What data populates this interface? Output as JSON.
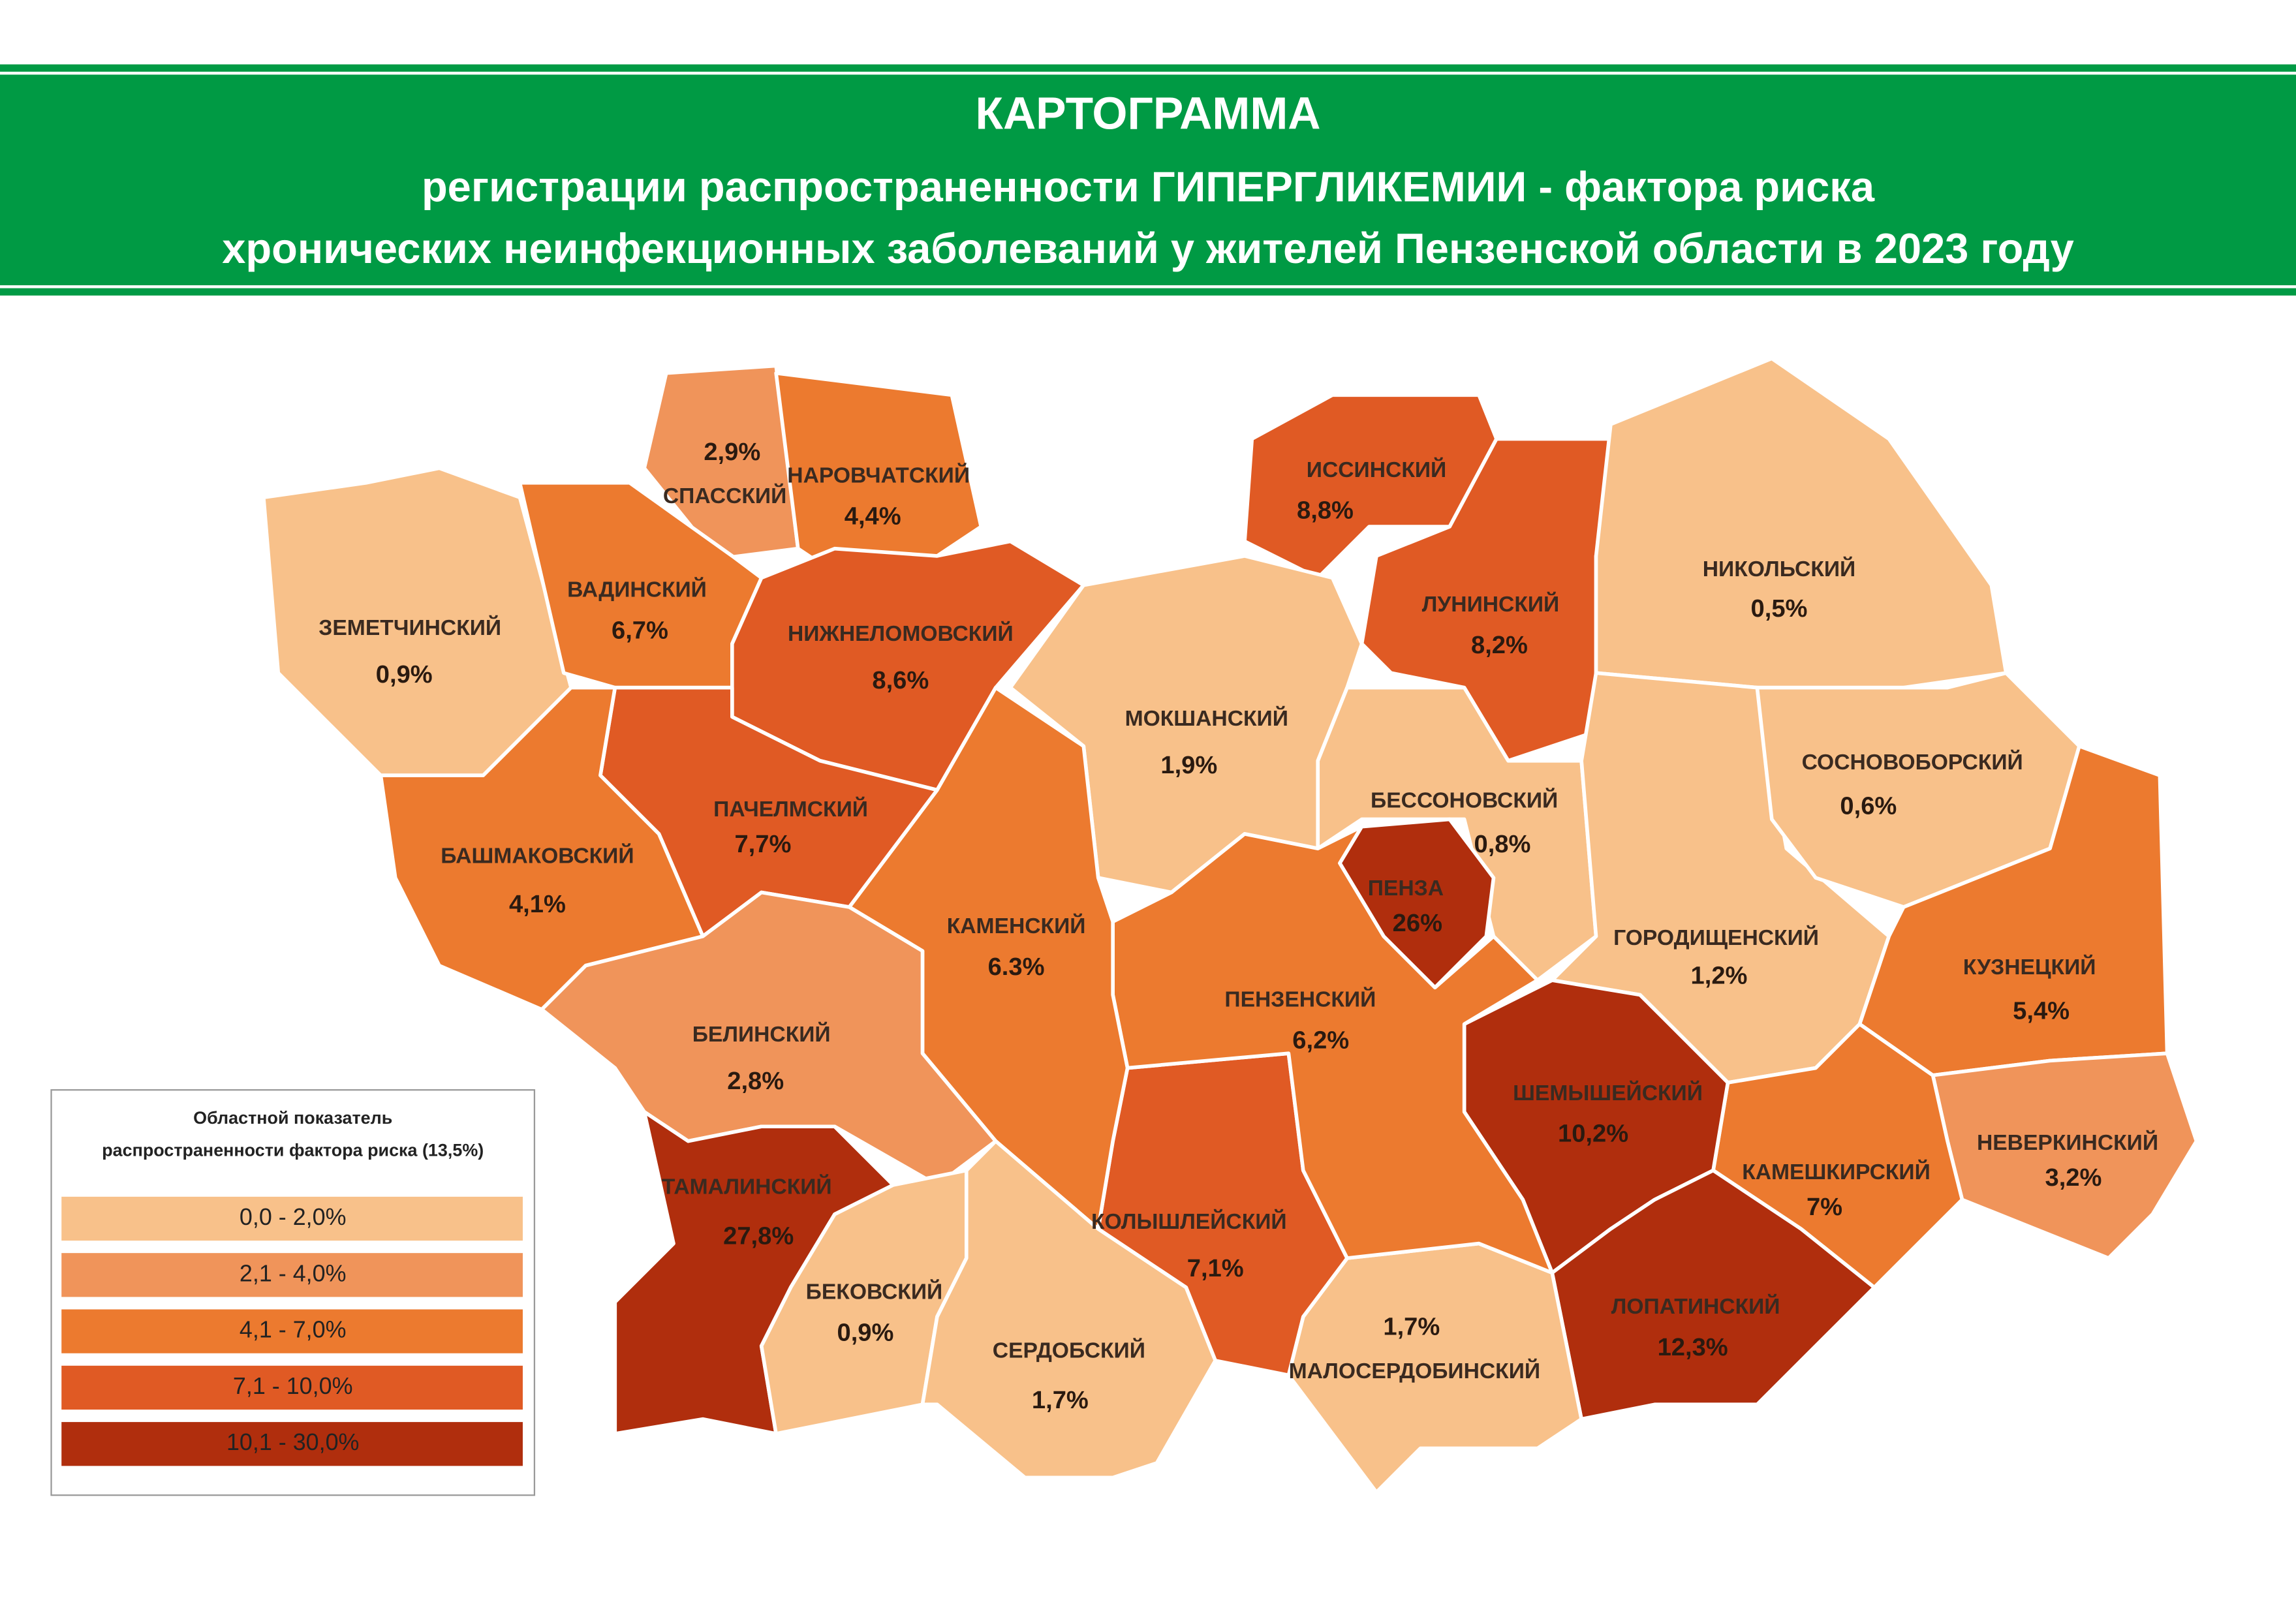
{
  "header": {
    "title": "КАРТОГРАММА",
    "subtitle_lines": [
      "регистрации распространенности ГИПЕРГЛИКЕМИИ - фактора риска",
      "хронических неинфекционных заболеваний у жителей Пензенской области в 2023 году"
    ]
  },
  "legend": {
    "title_lines": [
      "Областной показатель",
      "распространенности фактора риска (13,5%)"
    ],
    "items": [
      {
        "label": "0,0 - 2,0%",
        "color": "#f8c18a"
      },
      {
        "label": "2,1 - 4,0%",
        "color": "#f0945a"
      },
      {
        "label": "4,1 - 7,0%",
        "color": "#ec7a2f"
      },
      {
        "label": "7,1 - 10,0%",
        "color": "#e05a24"
      },
      {
        "label": "10,1 - 30,0%",
        "color": "#b02e0d"
      }
    ]
  },
  "regions": [
    {
      "name": "СПАССКИЙ",
      "value": "2,9%",
      "color": "#f0945a"
    },
    {
      "name": "НАРОВЧАТСКИЙ",
      "value": "4,4%",
      "color": "#ec7a2f"
    },
    {
      "name": "ИССИНСКИЙ",
      "value": "8,8%",
      "color": "#e05a24"
    },
    {
      "name": "ЛУНИНСКИЙ",
      "value": "8,2%",
      "color": "#e05a24"
    },
    {
      "name": "НИКОЛЬСКИЙ",
      "value": "0,5%",
      "color": "#f8c18a"
    },
    {
      "name": "ЗЕМЕТЧИНСКИЙ",
      "value": "0,9%",
      "color": "#f8c18a"
    },
    {
      "name": "ВАДИНСКИЙ",
      "value": "6,7%",
      "color": "#ec7a2f"
    },
    {
      "name": "НИЖНЕЛОМОВСКИЙ",
      "value": "8,6%",
      "color": "#e05a24"
    },
    {
      "name": "МОКШАНСКИЙ",
      "value": "1,9%",
      "color": "#f8c18a"
    },
    {
      "name": "БЕССОНОВСКИЙ",
      "value": "0,8%",
      "color": "#f8c18a"
    },
    {
      "name": "ГОРОДИЩЕНСКИЙ",
      "value": "1,2%",
      "color": "#f8c18a"
    },
    {
      "name": "СОСНОВОБОРСКИЙ",
      "value": "0,6%",
      "color": "#f8c18a"
    },
    {
      "name": "КУЗНЕЦКИЙ",
      "value": "5,4%",
      "color": "#ec7a2f"
    },
    {
      "name": "НЕВЕРКИНСКИЙ",
      "value": "3,2%",
      "color": "#f0945a"
    },
    {
      "name": "КАМЕШКИРСКИЙ",
      "value": "7%",
      "color": "#ec7a2f"
    },
    {
      "name": "ШЕМЫШЕЙСКИЙ",
      "value": "10,2%",
      "color": "#b02e0d"
    },
    {
      "name": "ЛОПАТИНСКИЙ",
      "value": "12,3%",
      "color": "#b02e0d"
    },
    {
      "name": "МАЛОСЕРДОБИНСКИЙ",
      "value": "1,7%",
      "color": "#f8c18a"
    },
    {
      "name": "КОЛЫШЛЕЙСКИЙ",
      "value": "7,1%",
      "color": "#e05a24"
    },
    {
      "name": "ПЕНЗЕНСКИЙ",
      "value": "6,2%",
      "color": "#ec7a2f"
    },
    {
      "name": "КАМЕНСКИЙ",
      "value": "6.3%",
      "color": "#ec7a2f"
    },
    {
      "name": "ПАЧЕЛМСКИЙ",
      "value": "7,7%",
      "color": "#e05a24"
    },
    {
      "name": "БАШМАКОВСКИЙ",
      "value": "4,1%",
      "color": "#ec7a2f"
    },
    {
      "name": "БЕЛИНСКИЙ",
      "value": "2,8%",
      "color": "#f0945a"
    },
    {
      "name": "ТАМАЛИНСКИЙ",
      "value": "27,8%",
      "color": "#b02e0d"
    },
    {
      "name": "БЕКОВСКИЙ",
      "value": "0,9%",
      "color": "#f8c18a"
    },
    {
      "name": "СЕРДОБСКИЙ",
      "value": "1,7%",
      "color": "#f8c18a"
    },
    {
      "name": "ПЕНЗА",
      "value": "26%",
      "color": "#b02e0d"
    }
  ]
}
